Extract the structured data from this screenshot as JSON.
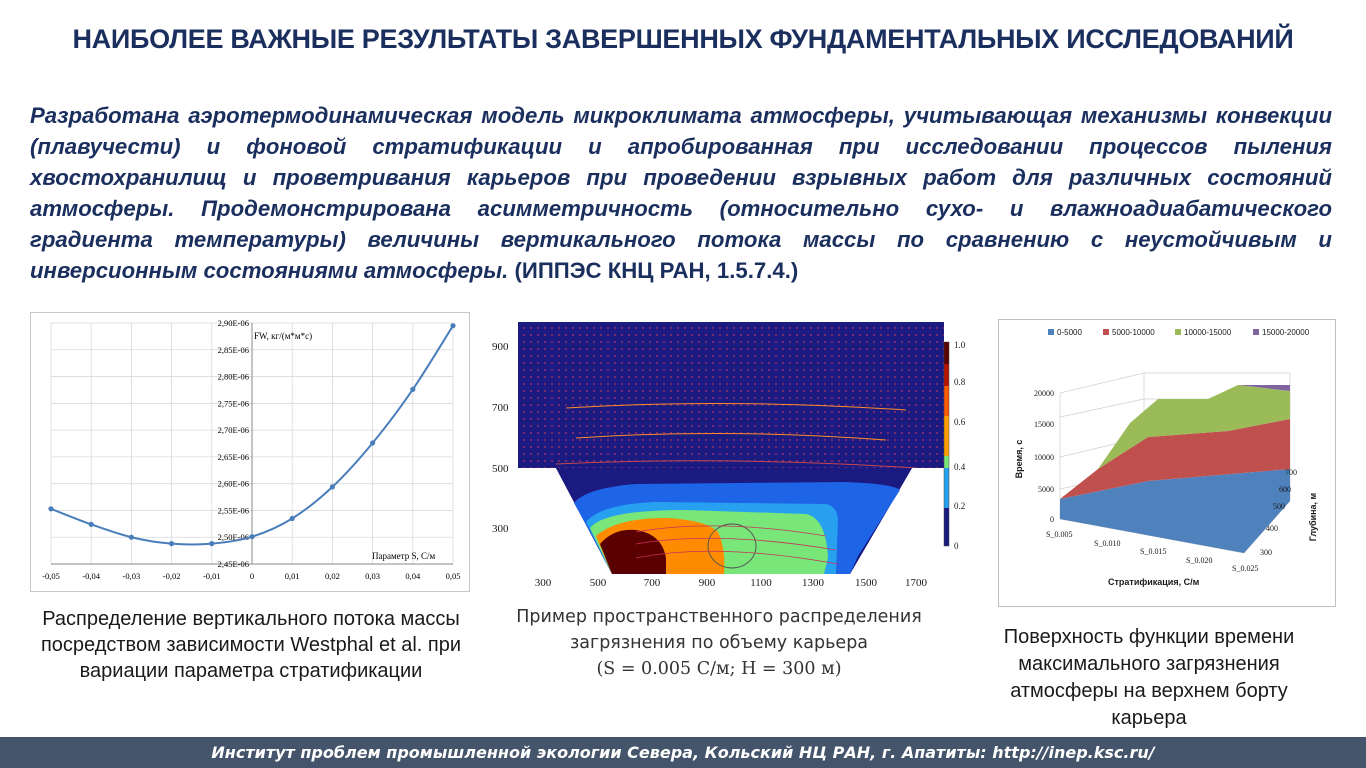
{
  "slide": {
    "title": "НАИБОЛЕЕ ВАЖНЫЕ РЕЗУЛЬТАТЫ ЗАВЕРШЕННЫХ ФУНДАМЕНТАЛЬНЫХ ИССЛЕДОВАНИЙ",
    "intro_italic": "Разработана аэротермодинамическая модель микроклимата атмосферы, учитывающая механизмы конвекции (плавучести) и фоновой стратификации и апробированная при исследовании процессов пыления хвостохранилищ и проветривания карьеров при проведении взрывных работ для различных состояний атмосферы. Продемонстрирована асимметричность (относительно сухо- и влажноадиабатического градиента температуры) величины вертикального потока массы по сравнению с неустойчивым и инверсионным состояниями атмосферы.",
    "intro_ref": " (ИППЭС КНЦ РАН, 1.5.7.4.)",
    "footer": "Институт проблем промышленной экологии Севера, Кольский НЦ РАН, г. Апатиты: http://inep.ksc.ru/"
  },
  "figures": {
    "left_caption": "Распределение вертикального потока массы посредством зависимости Westphal et al. при вариации параметра стратификации",
    "middle_caption_line1": "Пример пространственного распределения",
    "middle_caption_line2": "загрязнения по объему карьера",
    "middle_caption_line3": "(S = 0.005 С/м; H = 300 м)",
    "right_caption": "Поверхность функции времени максимального загрязнения атмосферы на верхнем борту карьера"
  },
  "chart_data": [
    {
      "type": "line",
      "ylabel": "FW, кг/(м*м*с)",
      "xlabel": "Параметр S, С/м",
      "x_ticks": [
        "-0,05",
        "-0,04",
        "-0,03",
        "-0,02",
        "-0,01",
        "0",
        "0,01",
        "0,02",
        "0,03",
        "0,04",
        "0,05"
      ],
      "y_ticks": [
        "2,45E-06",
        "2,50E-06",
        "2,55E-06",
        "2,60E-06",
        "2,65E-06",
        "2,70E-06",
        "2,75E-06",
        "2,80E-06",
        "2,85E-06",
        "2,90E-06"
      ],
      "xlim": [
        -0.05,
        0.05
      ],
      "ylim": [
        2.45e-06,
        2.9e-06
      ],
      "x": [
        -0.05,
        -0.04,
        -0.03,
        -0.02,
        -0.01,
        0,
        0.01,
        0.02,
        0.03,
        0.04,
        0.05
      ],
      "values": [
        2.553e-06,
        2.524e-06,
        2.5e-06,
        2.488e-06,
        2.488e-06,
        2.501e-06,
        2.535e-06,
        2.594e-06,
        2.676e-06,
        2.776e-06,
        2.895e-06
      ],
      "grid": true,
      "color": "#4a7ebb"
    },
    {
      "type": "heatmap",
      "x_ticks": [
        "300",
        "500",
        "700",
        "900",
        "1100",
        "1300",
        "1500",
        "1700"
      ],
      "y_ticks": [
        "300",
        "500",
        "700",
        "900"
      ],
      "colorbar_ticks": [
        "0",
        "0.2",
        "0.4",
        "0.6",
        "0.8",
        "1.0"
      ],
      "colorbar_range": [
        0,
        1
      ],
      "colors": [
        "#1a1a80",
        "#1e64e6",
        "#28a0f0",
        "#78e678",
        "#ff8c00",
        "#dc2800",
        "#5a0000"
      ]
    },
    {
      "type": "surface",
      "legend": [
        "0-5000",
        "5000-10000",
        "10000-15000",
        "15000-20000"
      ],
      "legend_colors": [
        "#4f81bd",
        "#c0504d",
        "#9bbb59",
        "#8064a2"
      ],
      "legend_position": "top",
      "x_ticks": [
        "S_0.005",
        "S_0.010",
        "S_0.015",
        "S_0.020",
        "S_0.025"
      ],
      "y_ticks": [
        "0",
        "5000",
        "10000",
        "15000",
        "20000"
      ],
      "z_ticks": [
        "300",
        "400",
        "500",
        "600",
        "700"
      ],
      "xlabel": "Стратификация, С/м",
      "ylabel": "Время, с",
      "zlabel": "Глубина, м"
    }
  ]
}
